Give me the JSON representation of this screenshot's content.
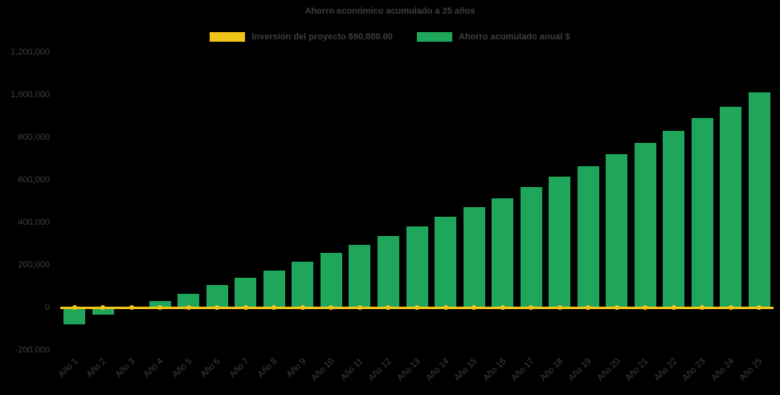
{
  "page": {
    "background_color": "#000000",
    "text_color": "#3f3f3f"
  },
  "chart_data": {
    "type": "bar",
    "title": "Ahorro económico acumulado a 25 años",
    "xlabel": "",
    "ylabel": "",
    "ylim": [
      -200000,
      1200000
    ],
    "ytick_step": 200000,
    "grid": false,
    "legend_position": "top",
    "categories": [
      "Año 1",
      "Año 2",
      "Año 3",
      "Año 4",
      "Año 5",
      "Año 6",
      "Año 7",
      "Año 8",
      "Año 9",
      "Año 10",
      "Año 11",
      "Año 12",
      "Año 13",
      "Año 14",
      "Año 15",
      "Año 16",
      "Año 17",
      "Año 18",
      "Año 19",
      "Año 20",
      "Año 21",
      "Año 22",
      "Año 23",
      "Año 24",
      "Año 25"
    ],
    "series": [
      {
        "name": "Inversión del proyecto $90,000.00",
        "type": "line",
        "color": "#F0C419",
        "constant_value": 0
      },
      {
        "name": "Ahorro acumulado anual $",
        "type": "bar",
        "color": "#1FA65A",
        "values": [
          -80000,
          -35000,
          5000,
          30000,
          65000,
          105000,
          140000,
          175000,
          215000,
          255000,
          295000,
          335000,
          380000,
          425000,
          470000,
          515000,
          565000,
          615000,
          665000,
          720000,
          775000,
          830000,
          890000,
          945000,
          1010000
        ]
      }
    ]
  }
}
